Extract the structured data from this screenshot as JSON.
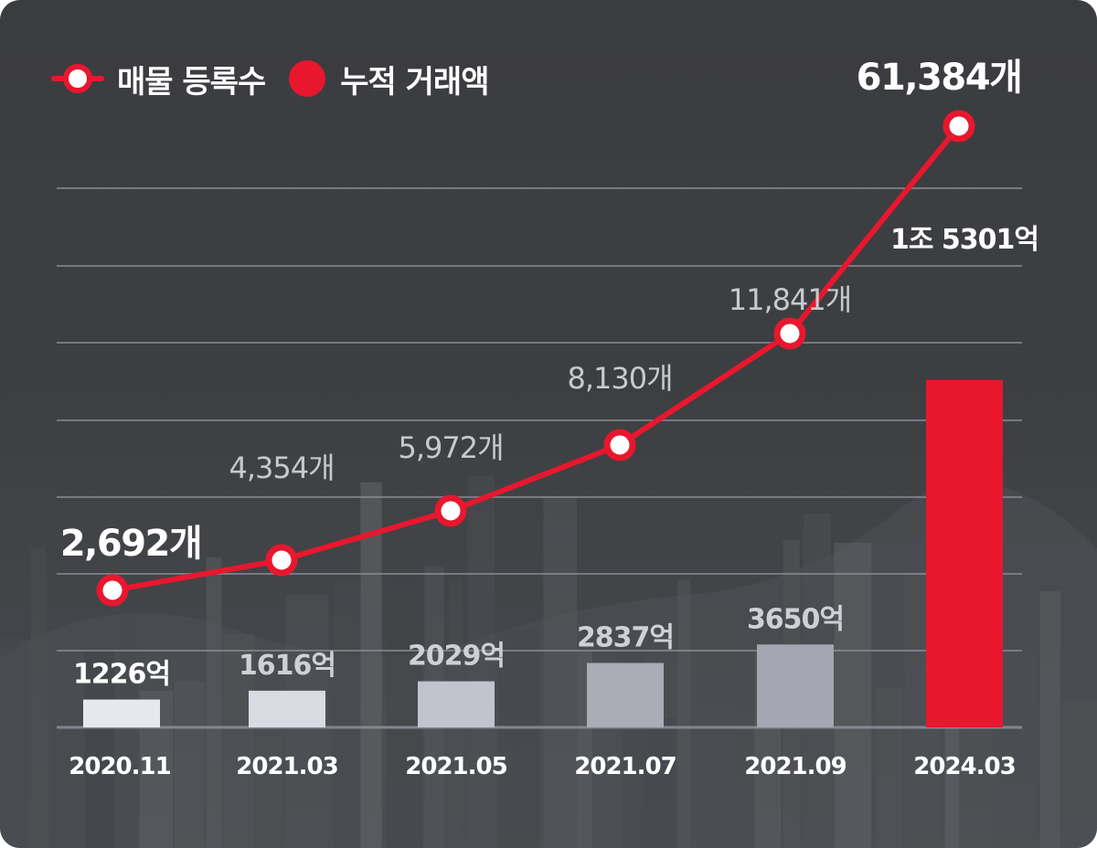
{
  "legend": {
    "line_label": "매물 등록수",
    "bar_label": "누적 거래액"
  },
  "colors": {
    "accent": "#e8172e",
    "line_point_fill": "#ffffff",
    "gridline": "#8a8d96",
    "axis_label": "#ffffff"
  },
  "chart_data": {
    "type": "bar",
    "categories": [
      "2020.11",
      "2021.03",
      "2021.05",
      "2021.07",
      "2021.09",
      "2024.03"
    ],
    "series": [
      {
        "name": "누적 거래액",
        "type": "bar",
        "unit": "억",
        "values": [
          1226,
          1616,
          2029,
          2837,
          3650,
          15301
        ],
        "labels": [
          "1226억",
          "1616억",
          "2029억",
          "2837억",
          "3650억",
          "1조 5301억"
        ],
        "colors": [
          "#e7e8ee",
          "#d9dae2",
          "#c2c4cd",
          "#aaacb6",
          "#a4a6b1",
          "#e8172e"
        ],
        "label_colors": [
          "#ffffff",
          "#cfd0d7",
          "#cfd0d7",
          "#cfd0d7",
          "#cfd0d7",
          "#ffffff"
        ]
      },
      {
        "name": "매물 등록수",
        "type": "line",
        "unit": "개",
        "values": [
          2692,
          4354,
          5972,
          8130,
          11841,
          61384
        ],
        "labels": [
          "2,692개",
          "4,354개",
          "5,972개",
          "8,130개",
          "11,841개",
          "61,384개"
        ],
        "label_emphasis": [
          true,
          false,
          false,
          false,
          false,
          true
        ]
      }
    ]
  }
}
